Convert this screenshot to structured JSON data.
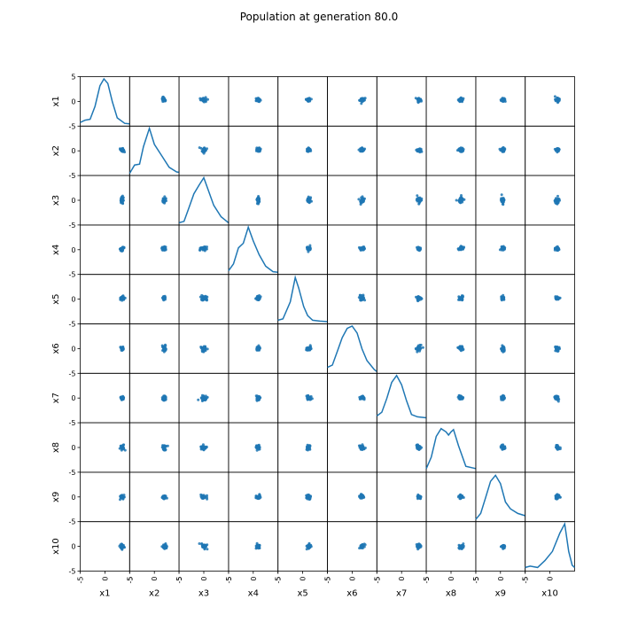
{
  "chart_data": {
    "type": "scatter",
    "title": "Population at generation 80.0",
    "variables": [
      "x1",
      "x2",
      "x3",
      "x4",
      "x5",
      "x6",
      "x7",
      "x8",
      "x9",
      "x10"
    ],
    "range": [
      -5,
      5
    ],
    "ticks": [
      -5,
      0,
      5
    ],
    "tick_labels": [
      "-5",
      "0",
      "5"
    ],
    "top_right_tick_label": "5",
    "grid": false,
    "diagonal": "kde",
    "kde_curves": [
      [
        [
          -5.0,
          0.05
        ],
        [
          -4.0,
          0.1
        ],
        [
          -3.0,
          0.12
        ],
        [
          -2.0,
          0.4
        ],
        [
          -1.0,
          0.85
        ],
        [
          -0.2,
          1.0
        ],
        [
          0.6,
          0.9
        ],
        [
          1.5,
          0.5
        ],
        [
          2.5,
          0.15
        ],
        [
          4.0,
          0.03
        ],
        [
          5.0,
          0.02
        ]
      ],
      [
        [
          -5.0,
          0.02
        ],
        [
          -4.0,
          0.2
        ],
        [
          -3.0,
          0.22
        ],
        [
          -2.2,
          0.6
        ],
        [
          -1.0,
          1.0
        ],
        [
          0.0,
          0.65
        ],
        [
          1.5,
          0.4
        ],
        [
          3.0,
          0.15
        ],
        [
          4.5,
          0.05
        ],
        [
          5.0,
          0.04
        ]
      ],
      [
        [
          -5.0,
          0.02
        ],
        [
          -4.0,
          0.05
        ],
        [
          -3.0,
          0.35
        ],
        [
          -2.0,
          0.65
        ],
        [
          -0.9,
          0.85
        ],
        [
          0.0,
          1.0
        ],
        [
          1.0,
          0.7
        ],
        [
          2.0,
          0.4
        ],
        [
          3.5,
          0.15
        ],
        [
          5.0,
          0.02
        ]
      ],
      [
        [
          -5.0,
          0.05
        ],
        [
          -4.0,
          0.2
        ],
        [
          -3.0,
          0.55
        ],
        [
          -2.0,
          0.65
        ],
        [
          -1.0,
          1.0
        ],
        [
          0.0,
          0.7
        ],
        [
          1.2,
          0.4
        ],
        [
          2.5,
          0.15
        ],
        [
          4.0,
          0.03
        ],
        [
          5.0,
          0.02
        ]
      ],
      [
        [
          -5.0,
          0.05
        ],
        [
          -4.0,
          0.08
        ],
        [
          -2.5,
          0.45
        ],
        [
          -1.5,
          0.98
        ],
        [
          -0.8,
          0.75
        ],
        [
          0.2,
          0.35
        ],
        [
          1.0,
          0.15
        ],
        [
          2.0,
          0.05
        ],
        [
          3.5,
          0.03
        ],
        [
          5.0,
          0.02
        ]
      ],
      [
        [
          -5.0,
          0.1
        ],
        [
          -4.0,
          0.15
        ],
        [
          -3.0,
          0.45
        ],
        [
          -2.0,
          0.75
        ],
        [
          -1.0,
          0.95
        ],
        [
          0.0,
          1.0
        ],
        [
          1.0,
          0.85
        ],
        [
          2.0,
          0.5
        ],
        [
          3.0,
          0.25
        ],
        [
          4.5,
          0.05
        ],
        [
          5.0,
          0.01
        ]
      ],
      [
        [
          -5.0,
          0.12
        ],
        [
          -4.0,
          0.2
        ],
        [
          -3.0,
          0.5
        ],
        [
          -2.0,
          0.85
        ],
        [
          -1.0,
          1.0
        ],
        [
          0.0,
          0.8
        ],
        [
          1.0,
          0.45
        ],
        [
          2.0,
          0.15
        ],
        [
          3.2,
          0.1
        ],
        [
          5.0,
          0.08
        ]
      ],
      [
        [
          -5.0,
          0.05
        ],
        [
          -4.0,
          0.3
        ],
        [
          -3.0,
          0.75
        ],
        [
          -2.0,
          0.92
        ],
        [
          -1.0,
          0.85
        ],
        [
          -0.5,
          0.78
        ],
        [
          0.0,
          0.85
        ],
        [
          0.5,
          0.9
        ],
        [
          1.5,
          0.55
        ],
        [
          3.0,
          0.1
        ],
        [
          5.0,
          0.05
        ]
      ],
      [
        [
          -5.0,
          0.02
        ],
        [
          -4.0,
          0.15
        ],
        [
          -3.0,
          0.5
        ],
        [
          -2.0,
          0.85
        ],
        [
          -1.0,
          0.98
        ],
        [
          0.0,
          0.8
        ],
        [
          1.0,
          0.4
        ],
        [
          2.0,
          0.25
        ],
        [
          3.5,
          0.15
        ],
        [
          5.0,
          0.1
        ]
      ],
      [
        [
          -5.0,
          0.05
        ],
        [
          -4.0,
          0.08
        ],
        [
          -2.5,
          0.05
        ],
        [
          -1.0,
          0.2
        ],
        [
          0.5,
          0.4
        ],
        [
          2.0,
          0.8
        ],
        [
          3.0,
          1.0
        ],
        [
          3.8,
          0.4
        ],
        [
          4.5,
          0.1
        ],
        [
          5.0,
          0.05
        ]
      ]
    ],
    "column_centers": [
      3.5,
      2.0,
      0.0,
      1.0,
      1.2,
      2.0,
      3.5,
      2.0,
      0.5,
      1.5
    ],
    "row_centers": [
      0.3,
      0.2,
      0.0,
      0.2,
      0.2,
      0.0,
      0.0,
      0.0,
      0.0,
      0.0
    ],
    "cloud_spread": [
      0.35,
      0.35,
      0.6,
      0.35,
      0.4,
      0.45,
      0.4,
      0.45,
      0.35,
      0.4
    ]
  }
}
